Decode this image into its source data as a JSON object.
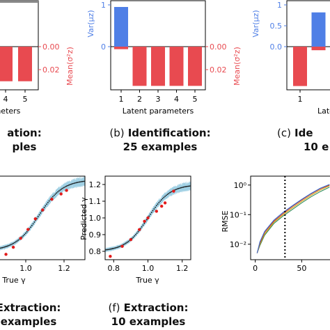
{
  "panels": {
    "a": {
      "red_ticks": [
        "0.00",
        "0.02"
      ],
      "x_ticks": [
        "4",
        "5"
      ],
      "red_axis_label": "Mean(σ²z)",
      "xlabel_fragment": "meters"
    },
    "b": {
      "blue_ticks": [
        "1",
        "0"
      ],
      "red_ticks": [
        "0.00",
        "0.02"
      ],
      "x_ticks": [
        "1",
        "2",
        "3",
        "4",
        "5"
      ],
      "blue_axis_label": "Var(μz)",
      "red_axis_label": "Mean(σ²z)",
      "xlabel": "Latent parameters"
    },
    "c": {
      "blue_ticks": [
        "1",
        "0.5",
        "0.0"
      ],
      "x_ticks": [
        "1"
      ],
      "blue_axis_label": "Var(μz)",
      "xlabel_fragment": "Laten"
    },
    "d": {
      "x_ticks": [
        "1.0",
        "1.2"
      ],
      "xlabel": "True γ"
    },
    "e": {
      "x_ticks": [
        "0.8",
        "1.0",
        "1.2"
      ],
      "y_ticks": [
        "1.2",
        "1.1",
        "1.0",
        "0.9",
        "0.8"
      ],
      "xlabel": "True γ",
      "ylabel": "Predicted γ"
    },
    "f": {
      "x_ticks": [
        "0",
        "50"
      ],
      "y_ticks": [
        "10⁰",
        "10⁻¹",
        "10⁻²"
      ],
      "ylabel": "RMSE"
    }
  },
  "captions": {
    "a": {
      "label": "",
      "title": "ation:",
      "sub": "ples"
    },
    "b": {
      "label": "(b)",
      "title": "Identification:",
      "sub": "25 examples"
    },
    "c": {
      "label": "(c)",
      "title": "Ide",
      "sub": "10 e"
    },
    "d": {
      "label": "",
      "title": "Extraction:",
      "sub": "examples"
    },
    "e": {
      "label": "(f)",
      "title": "Extraction:",
      "sub": "10 examples"
    }
  },
  "chart_data": [
    {
      "panel": "a",
      "type": "bar",
      "categories": [
        "4",
        "5"
      ],
      "series": [
        {
          "values": [
            0.029,
            0.029
          ]
        }
      ],
      "ylim": [
        0,
        0.035
      ],
      "ylabel": "Mean(σ²z)",
      "xlabel": ""
    },
    {
      "panel": "b",
      "type": "bar",
      "categories": [
        "1",
        "2",
        "3",
        "4",
        "5"
      ],
      "series": [
        {
          "name": "Var(μz)",
          "values": [
            0.95,
            0,
            0,
            0,
            0
          ]
        },
        {
          "name": "Mean(σ²z)",
          "values": [
            0.002,
            0.031,
            0.031,
            0.031,
            0.031
          ]
        }
      ],
      "ylim_top": [
        0,
        1
      ],
      "ylim_bottom": [
        0,
        0.033
      ],
      "xlabel": "Latent parameters"
    },
    {
      "panel": "c",
      "type": "bar",
      "categories": [
        "1",
        "2"
      ],
      "series": [
        {
          "name": "Var(μz)",
          "values": [
            0,
            0.82
          ]
        },
        {
          "name": "Mean(σ²z)",
          "values": [
            0.033,
            0.003
          ]
        }
      ],
      "ylim_top": [
        0,
        1
      ],
      "ylim_bottom": [
        0,
        0.035
      ]
    },
    {
      "panel": "d",
      "type": "scatter",
      "x": [
        0.82,
        0.86,
        0.9,
        0.94,
        0.98,
        1.02,
        1.07,
        1.12,
        1.15
      ],
      "y": [
        0.78,
        0.82,
        0.87,
        0.92,
        0.98,
        1.03,
        1.09,
        1.12,
        1.14
      ],
      "xlim": [
        0.78,
        1.25
      ],
      "ylim": [
        0.75,
        1.22
      ],
      "xlabel": "True γ"
    },
    {
      "panel": "e",
      "type": "scatter",
      "x": [
        0.78,
        0.85,
        0.9,
        0.95,
        0.98,
        1.0,
        1.05,
        1.08,
        1.1,
        1.15
      ],
      "y": [
        0.77,
        0.83,
        0.87,
        0.93,
        0.98,
        1.0,
        1.04,
        1.07,
        1.09,
        1.16
      ],
      "xlim": [
        0.75,
        1.25
      ],
      "ylim": [
        0.75,
        1.25
      ],
      "xlabel": "True γ",
      "ylabel": "Predicted γ"
    },
    {
      "panel": "f",
      "type": "line",
      "series": [
        {
          "x": [
            2,
            5,
            10,
            20,
            30,
            40,
            50,
            60,
            70,
            80
          ],
          "y": [
            0.005,
            0.009,
            0.02,
            0.05,
            0.09,
            0.15,
            0.25,
            0.4,
            0.6,
            0.85
          ]
        },
        {
          "x": [
            2,
            5,
            10,
            20,
            30,
            40,
            50,
            60,
            70,
            80
          ],
          "y": [
            0.005,
            0.01,
            0.022,
            0.055,
            0.1,
            0.17,
            0.28,
            0.45,
            0.68,
            0.95
          ]
        },
        {
          "x": [
            2,
            5,
            10,
            20,
            30,
            40,
            50,
            60,
            70,
            80
          ],
          "y": [
            0.005,
            0.011,
            0.025,
            0.06,
            0.11,
            0.19,
            0.31,
            0.5,
            0.75,
            1.0
          ]
        },
        {
          "x": [
            2,
            5,
            10,
            20,
            30,
            40,
            50,
            60,
            70,
            80
          ],
          "y": [
            0.005,
            0.012,
            0.027,
            0.065,
            0.12,
            0.2,
            0.33,
            0.52,
            0.78,
            1.05
          ]
        }
      ],
      "vline_x": 32,
      "xlim": [
        -5,
        85
      ],
      "ylim": [
        0.003,
        2
      ],
      "yscale": "log",
      "ylabel": "RMSE"
    }
  ],
  "colors": {
    "blue": "#4f7fe6",
    "red": "#e84a50",
    "scatter_red": "#e21b1b",
    "band": "#9fcfe4",
    "lines": [
      "#2e8b57",
      "#d4a017",
      "#c0392b",
      "#3b6fd1"
    ]
  }
}
